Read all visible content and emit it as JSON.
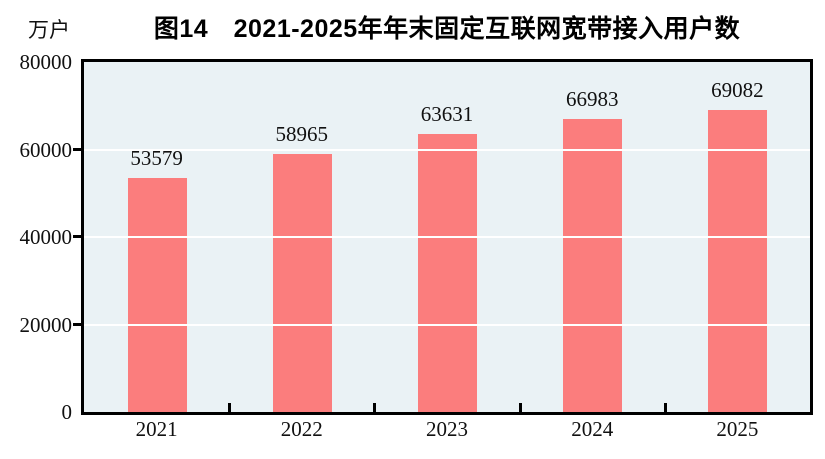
{
  "chart_data": {
    "type": "bar",
    "title": "图14　2021-2025年年末固定互联网宽带接入用户数",
    "unit_label": "万户",
    "categories": [
      "2021",
      "2022",
      "2023",
      "2024",
      "2025"
    ],
    "values": [
      53579,
      58965,
      63631,
      66983,
      69082
    ],
    "data_labels": true,
    "ylim": [
      0,
      80000
    ],
    "yticks": [
      0,
      20000,
      40000,
      60000,
      80000
    ],
    "xlabel": "",
    "ylabel": "万户",
    "grid": "horizontal",
    "legend": "none",
    "colors": {
      "bar_fill": "#FB7D7D",
      "plot_background": "#EAF2F5",
      "axis_border": "#000000",
      "gridline": "#FFFFFF",
      "text": "#111111"
    }
  }
}
